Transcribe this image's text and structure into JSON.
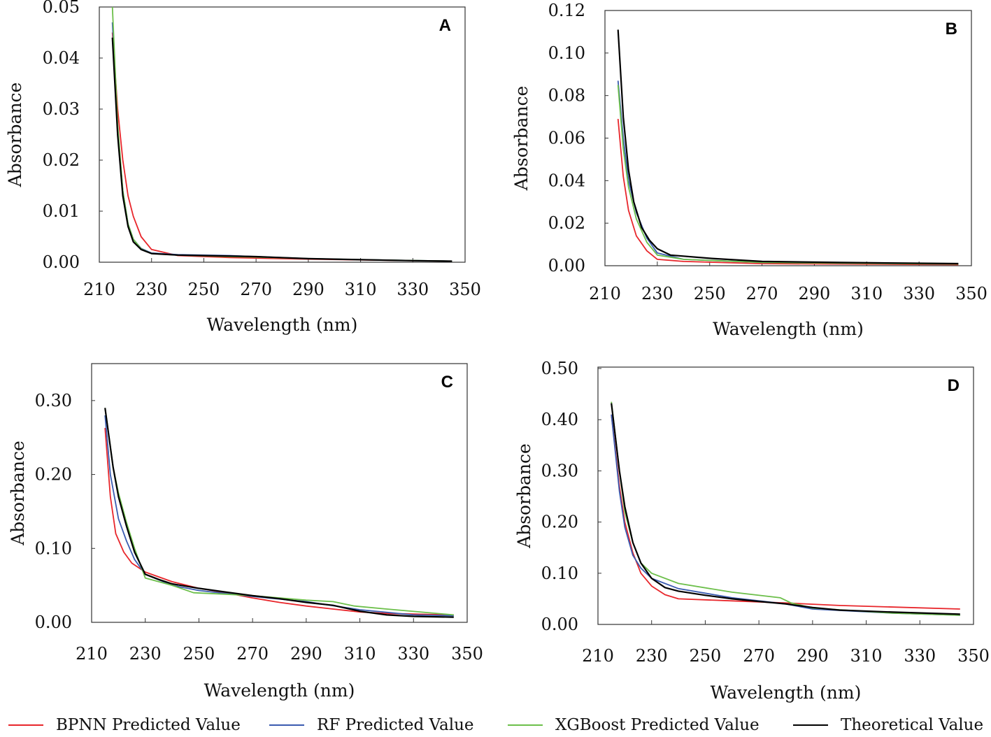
{
  "legend": [
    {
      "name": "BPNN Predicted Value",
      "color": "#e8262b"
    },
    {
      "name": "RF Predicted Value",
      "color": "#3a5bb0"
    },
    {
      "name": "XGBoost Predicted Value",
      "color": "#6cbf4a"
    },
    {
      "name": "Theoretical Value",
      "color": "#000000"
    }
  ],
  "chart_data": [
    {
      "type": "line",
      "panel": "A",
      "xlabel": "Wavelength (nm)",
      "ylabel": "Absorbance",
      "xlim": [
        210,
        350
      ],
      "ylim": [
        0,
        0.05
      ],
      "xticks": [
        "210",
        "230",
        "250",
        "270",
        "290",
        "310",
        "330",
        "350"
      ],
      "yticks": [
        "0.00",
        "0.01",
        "0.02",
        "0.03",
        "0.04",
        "0.05"
      ],
      "series": [
        {
          "name": "BPNN Predicted Value",
          "x": [
            215,
            217,
            219,
            221,
            223,
            226,
            230,
            240,
            260,
            290,
            345
          ],
          "y": [
            0.045,
            0.03,
            0.02,
            0.013,
            0.009,
            0.005,
            0.0025,
            0.0013,
            0.0009,
            0.0006,
            0.0002
          ]
        },
        {
          "name": "RF Predicted Value",
          "x": [
            215,
            217,
            219,
            221,
            223,
            226,
            230,
            240,
            260,
            270,
            290,
            310,
            345
          ],
          "y": [
            0.047,
            0.026,
            0.014,
            0.0075,
            0.0045,
            0.0027,
            0.0018,
            0.0015,
            0.0013,
            0.0011,
            0.0007,
            0.0005,
            0.0002
          ]
        },
        {
          "name": "XGBoost Predicted Value",
          "x": [
            215,
            217,
            219,
            221,
            223,
            226,
            230,
            240,
            260,
            270,
            290,
            310,
            345
          ],
          "y": [
            0.05,
            0.027,
            0.014,
            0.0075,
            0.0045,
            0.0026,
            0.0017,
            0.0014,
            0.0011,
            0.001,
            0.0007,
            0.0005,
            0.0002
          ]
        },
        {
          "name": "Theoretical Value",
          "x": [
            215,
            217,
            219,
            221,
            223,
            226,
            230,
            240,
            260,
            270,
            290,
            310,
            330,
            345
          ],
          "y": [
            0.044,
            0.025,
            0.013,
            0.007,
            0.004,
            0.0025,
            0.0017,
            0.0014,
            0.0012,
            0.0011,
            0.0007,
            0.0005,
            0.0003,
            0.0002
          ]
        }
      ]
    },
    {
      "type": "line",
      "panel": "B",
      "xlabel": "Wavelength (nm)",
      "ylabel": "Absorbance",
      "xlim": [
        210,
        350
      ],
      "ylim": [
        0,
        0.12
      ],
      "xticks": [
        "210",
        "230",
        "250",
        "270",
        "290",
        "310",
        "330",
        "350"
      ],
      "yticks": [
        "0.00",
        "0.02",
        "0.04",
        "0.06",
        "0.08",
        "0.10",
        "0.12"
      ],
      "series": [
        {
          "name": "BPNN Predicted Value",
          "x": [
            215,
            217,
            219,
            222,
            226,
            230,
            240,
            270,
            345
          ],
          "y": [
            0.069,
            0.042,
            0.026,
            0.014,
            0.007,
            0.003,
            0.002,
            0.001,
            0.0005
          ]
        },
        {
          "name": "RF Predicted Value",
          "x": [
            215,
            217,
            219,
            222,
            226,
            230,
            240,
            270,
            345
          ],
          "y": [
            0.087,
            0.06,
            0.04,
            0.025,
            0.013,
            0.006,
            0.003,
            0.0015,
            0.0008
          ]
        },
        {
          "name": "XGBoost Predicted Value",
          "x": [
            215,
            217,
            219,
            222,
            226,
            230,
            240,
            270,
            345
          ],
          "y": [
            0.085,
            0.055,
            0.037,
            0.022,
            0.011,
            0.005,
            0.003,
            0.0015,
            0.0008
          ]
        },
        {
          "name": "Theoretical Value",
          "x": [
            215,
            217,
            219,
            221,
            224,
            227,
            230,
            235,
            250,
            270,
            300,
            345
          ],
          "y": [
            0.111,
            0.07,
            0.045,
            0.03,
            0.018,
            0.012,
            0.008,
            0.005,
            0.0035,
            0.002,
            0.0015,
            0.001
          ]
        }
      ]
    },
    {
      "type": "line",
      "panel": "C",
      "xlabel": "Wavelength (nm)",
      "ylabel": "Absorbance",
      "xlim": [
        210,
        350
      ],
      "ylim": [
        0,
        0.35
      ],
      "xticks": [
        "210",
        "230",
        "250",
        "270",
        "290",
        "310",
        "330",
        "350"
      ],
      "yticks": [
        "0.00",
        "0.10",
        "0.20",
        "0.30"
      ],
      "series": [
        {
          "name": "BPNN Predicted Value",
          "x": [
            215,
            217,
            219,
            222,
            225,
            230,
            240,
            250,
            260,
            270,
            280,
            290,
            300,
            310,
            320,
            345
          ],
          "y": [
            0.263,
            0.17,
            0.12,
            0.095,
            0.08,
            0.068,
            0.055,
            0.046,
            0.04,
            0.033,
            0.027,
            0.022,
            0.018,
            0.014,
            0.012,
            0.01
          ]
        },
        {
          "name": "RF Predicted Value",
          "x": [
            215,
            217,
            220,
            223,
            226,
            230,
            240,
            250,
            270,
            290,
            310,
            330,
            345
          ],
          "y": [
            0.28,
            0.2,
            0.14,
            0.11,
            0.085,
            0.065,
            0.05,
            0.043,
            0.035,
            0.028,
            0.017,
            0.01,
            0.009
          ]
        },
        {
          "name": "XGBoost Predicted Value",
          "x": [
            215,
            218,
            220,
            223,
            226,
            230,
            240,
            248,
            260,
            270,
            290,
            300,
            308,
            320,
            345
          ],
          "y": [
            0.29,
            0.21,
            0.175,
            0.135,
            0.1,
            0.06,
            0.05,
            0.04,
            0.038,
            0.036,
            0.03,
            0.028,
            0.022,
            0.018,
            0.01
          ]
        },
        {
          "name": "Theoretical Value",
          "x": [
            215,
            218,
            220,
            223,
            226,
            230,
            235,
            240,
            250,
            260,
            270,
            280,
            290,
            300,
            310,
            320,
            330,
            345
          ],
          "y": [
            0.29,
            0.21,
            0.17,
            0.13,
            0.095,
            0.065,
            0.058,
            0.052,
            0.046,
            0.041,
            0.036,
            0.032,
            0.027,
            0.023,
            0.015,
            0.01,
            0.008,
            0.007
          ]
        }
      ]
    },
    {
      "type": "line",
      "panel": "D",
      "xlabel": "Wavelength (nm)",
      "ylabel": "Absorbance",
      "xlim": [
        210,
        350
      ],
      "ylim": [
        0,
        0.5
      ],
      "xticks": [
        "210",
        "230",
        "250",
        "270",
        "290",
        "310",
        "330",
        "350"
      ],
      "yticks": [
        "0.00",
        "0.10",
        "0.20",
        "0.30",
        "0.40",
        "0.50"
      ],
      "series": [
        {
          "name": "BPNN Predicted Value",
          "x": [
            215,
            218,
            220,
            223,
            226,
            230,
            235,
            240,
            260,
            280,
            300,
            345
          ],
          "y": [
            0.41,
            0.27,
            0.2,
            0.14,
            0.1,
            0.075,
            0.058,
            0.05,
            0.046,
            0.042,
            0.037,
            0.03
          ]
        },
        {
          "name": "RF Predicted Value",
          "x": [
            215,
            218,
            220,
            223,
            226,
            230,
            240,
            260,
            280,
            290,
            320,
            345
          ],
          "y": [
            0.41,
            0.26,
            0.19,
            0.135,
            0.11,
            0.09,
            0.07,
            0.052,
            0.04,
            0.03,
            0.022,
            0.018
          ]
        },
        {
          "name": "XGBoost Predicted Value",
          "x": [
            215,
            218,
            220,
            223,
            226,
            230,
            240,
            260,
            278,
            282,
            290,
            320,
            345
          ],
          "y": [
            0.435,
            0.3,
            0.22,
            0.16,
            0.12,
            0.1,
            0.08,
            0.063,
            0.052,
            0.042,
            0.032,
            0.022,
            0.018
          ]
        },
        {
          "name": "Theoretical Value",
          "x": [
            215,
            218,
            220,
            223,
            226,
            230,
            235,
            240,
            250,
            260,
            270,
            280,
            290,
            300,
            320,
            345
          ],
          "y": [
            0.432,
            0.3,
            0.23,
            0.16,
            0.12,
            0.09,
            0.072,
            0.065,
            0.057,
            0.05,
            0.045,
            0.04,
            0.033,
            0.028,
            0.024,
            0.02
          ]
        }
      ]
    }
  ]
}
